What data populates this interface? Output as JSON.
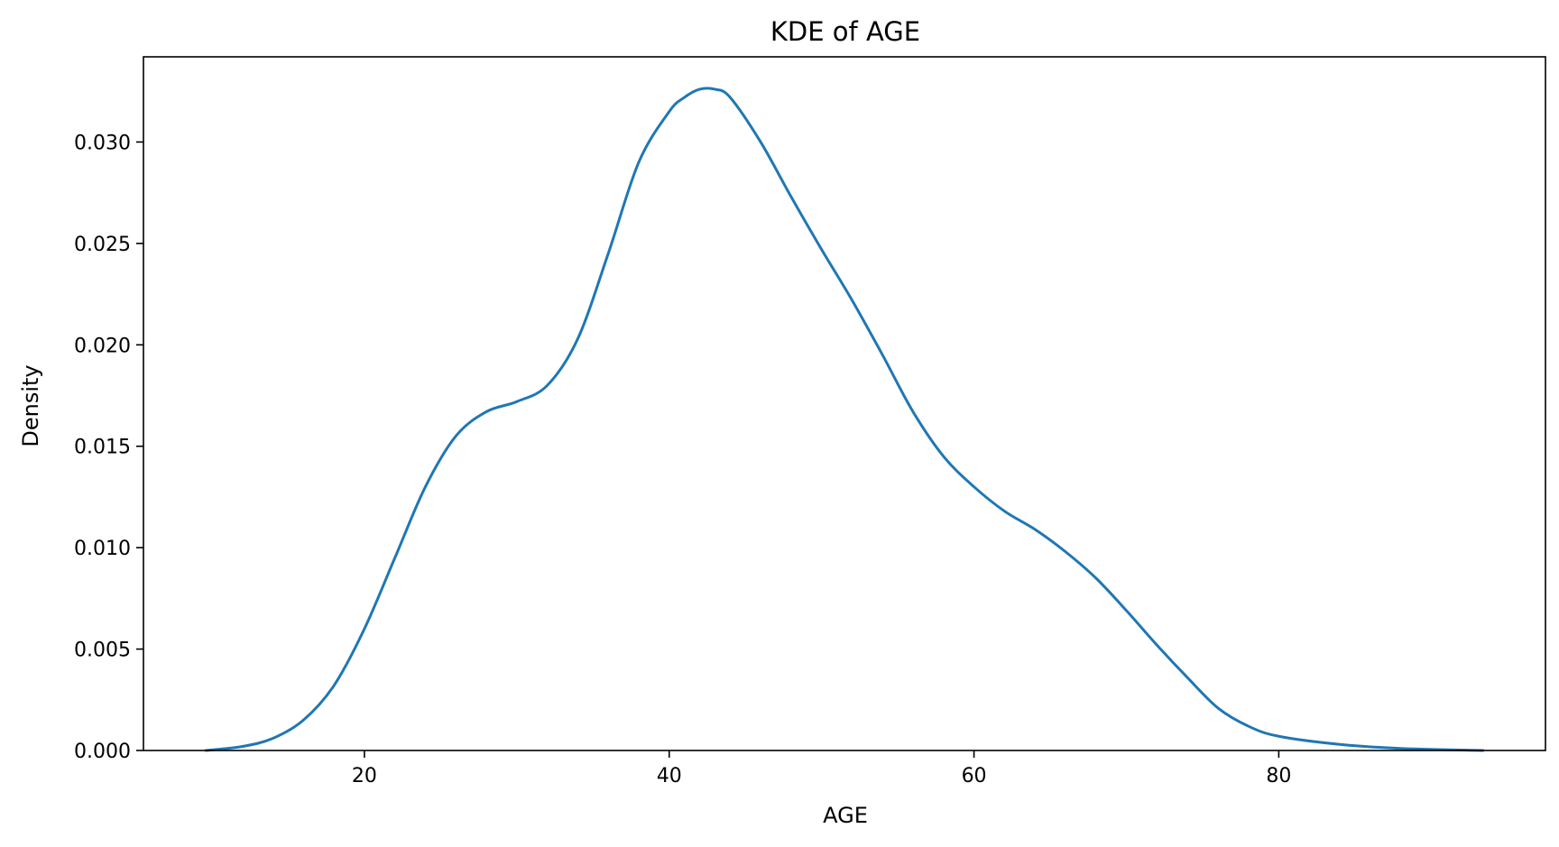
{
  "chart_data": {
    "type": "line",
    "title": "KDE of AGE",
    "xlabel": "AGE",
    "ylabel": "Density",
    "xlim": [
      5.5,
      97.5
    ],
    "ylim": [
      0,
      0.0342
    ],
    "xticks": [
      20,
      40,
      60,
      80
    ],
    "yticks": [
      0.0,
      0.005,
      0.01,
      0.015,
      0.02,
      0.025,
      0.03
    ],
    "ytick_labels": [
      "0.000",
      "0.005",
      "0.010",
      "0.015",
      "0.020",
      "0.025",
      "0.030"
    ],
    "xtick_labels": [
      "20",
      "40",
      "60",
      "80"
    ],
    "grid": false,
    "series": [
      {
        "color": "#1f77b4",
        "x": [
          9.6,
          12,
          14,
          16,
          18,
          20,
          22,
          24,
          26,
          28,
          30,
          32,
          34,
          36,
          38,
          40,
          41,
          42,
          43,
          44,
          46,
          48,
          50,
          52,
          54,
          56,
          58,
          60,
          62,
          64,
          66,
          68,
          70,
          72,
          74,
          76,
          78,
          80,
          84,
          88,
          93.4
        ],
        "y": [
          0.0,
          0.0002,
          0.0006,
          0.0015,
          0.0032,
          0.006,
          0.0095,
          0.013,
          0.0155,
          0.0167,
          0.0172,
          0.018,
          0.0203,
          0.0245,
          0.029,
          0.0315,
          0.0322,
          0.0326,
          0.0326,
          0.0322,
          0.03,
          0.0273,
          0.0247,
          0.0222,
          0.0195,
          0.0167,
          0.0145,
          0.013,
          0.0118,
          0.0109,
          0.0098,
          0.0085,
          0.0069,
          0.0052,
          0.0036,
          0.0021,
          0.0012,
          0.0007,
          0.0003,
          0.0001,
          0.0
        ]
      }
    ]
  }
}
